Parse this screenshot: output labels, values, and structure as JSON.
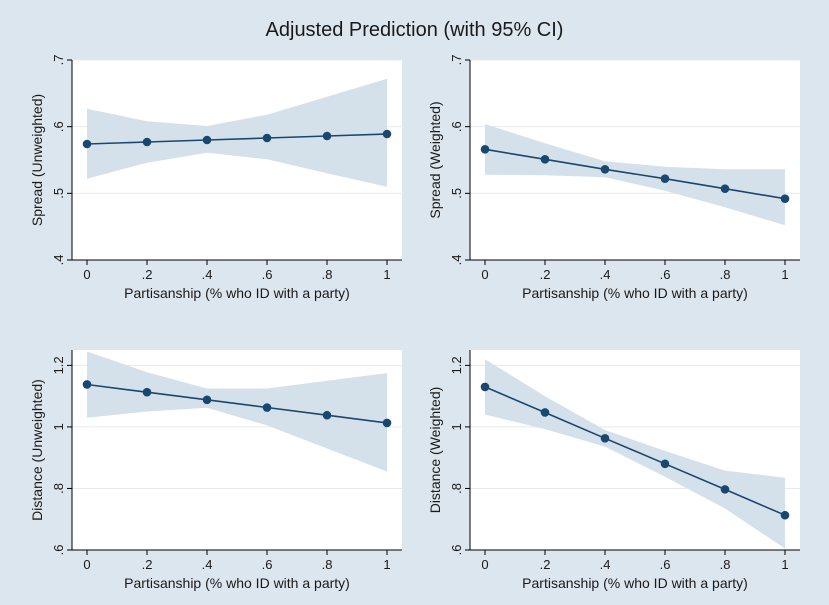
{
  "title": "Adjusted Prediction (with 95% CI)",
  "colors": {
    "background": "#dce6ee",
    "plot_bg": "#ffffff",
    "grid": "#e6eaee",
    "ci_band": "#d5e1ea",
    "line": "#1a476f",
    "marker": "#1a476f",
    "text": "#1a1a1a"
  },
  "chart_data": [
    {
      "type": "line",
      "xlabel": "Partisanship (% who ID with a party)",
      "ylabel": "Spread (Unweighted)",
      "x": [
        0,
        0.2,
        0.4,
        0.6,
        0.8,
        1
      ],
      "xtick_values": [
        0,
        0.2,
        0.4,
        0.6,
        0.8,
        1
      ],
      "xtick_labels": [
        "0",
        ".2",
        ".4",
        ".6",
        ".8",
        "1"
      ],
      "ylim": [
        0.4,
        0.7
      ],
      "ytick_values": [
        0.4,
        0.5,
        0.6,
        0.7
      ],
      "ytick_labels": [
        ".4",
        ".5",
        ".6",
        ".7"
      ],
      "series": [
        {
          "name": "prediction",
          "values": [
            0.574,
            0.577,
            0.58,
            0.583,
            0.586,
            0.589
          ],
          "ci_lower": [
            0.522,
            0.546,
            0.561,
            0.551,
            0.53,
            0.51
          ],
          "ci_upper": [
            0.627,
            0.608,
            0.601,
            0.618,
            0.645,
            0.672
          ]
        }
      ]
    },
    {
      "type": "line",
      "xlabel": "Partisanship (% who ID with a party)",
      "ylabel": "Spread (Weighted)",
      "x": [
        0,
        0.2,
        0.4,
        0.6,
        0.8,
        1
      ],
      "xtick_values": [
        0,
        0.2,
        0.4,
        0.6,
        0.8,
        1
      ],
      "xtick_labels": [
        "0",
        ".2",
        ".4",
        ".6",
        ".8",
        "1"
      ],
      "ylim": [
        0.4,
        0.7
      ],
      "ytick_values": [
        0.4,
        0.5,
        0.6,
        0.7
      ],
      "ytick_labels": [
        ".4",
        ".5",
        ".6",
        ".7"
      ],
      "series": [
        {
          "name": "prediction",
          "values": [
            0.566,
            0.551,
            0.536,
            0.522,
            0.507,
            0.492
          ],
          "ci_lower": [
            0.528,
            0.527,
            0.524,
            0.504,
            0.479,
            0.452
          ],
          "ci_upper": [
            0.604,
            0.575,
            0.548,
            0.54,
            0.536,
            0.536
          ]
        }
      ]
    },
    {
      "type": "line",
      "xlabel": "Partisanship (% who ID with a party)",
      "ylabel": "Distance (Unweighted)",
      "x": [
        0,
        0.2,
        0.4,
        0.6,
        0.8,
        1
      ],
      "xtick_values": [
        0,
        0.2,
        0.4,
        0.6,
        0.8,
        1
      ],
      "xtick_labels": [
        "0",
        ".2",
        ".4",
        ".6",
        ".8",
        "1"
      ],
      "ylim": [
        0.6,
        1.25
      ],
      "ytick_values": [
        0.6,
        0.8,
        1.0,
        1.2
      ],
      "ytick_labels": [
        ".6",
        ".8",
        "1",
        "1.2"
      ],
      "series": [
        {
          "name": "prediction",
          "values": [
            1.138,
            1.113,
            1.088,
            1.063,
            1.038,
            1.013
          ],
          "ci_lower": [
            1.03,
            1.05,
            1.062,
            1.005,
            0.93,
            0.855
          ],
          "ci_upper": [
            1.245,
            1.178,
            1.125,
            1.125,
            1.15,
            1.175
          ]
        }
      ]
    },
    {
      "type": "line",
      "xlabel": "Partisanship (% who ID with a party)",
      "ylabel": "Distance (Weighted)",
      "x": [
        0,
        0.2,
        0.4,
        0.6,
        0.8,
        1
      ],
      "xtick_values": [
        0,
        0.2,
        0.4,
        0.6,
        0.8,
        1
      ],
      "xtick_labels": [
        "0",
        ".2",
        ".4",
        ".6",
        ".8",
        "1"
      ],
      "ylim": [
        0.6,
        1.25
      ],
      "ytick_values": [
        0.6,
        0.8,
        1.0,
        1.2
      ],
      "ytick_labels": [
        ".6",
        ".8",
        "1",
        "1.2"
      ],
      "series": [
        {
          "name": "prediction",
          "values": [
            1.13,
            1.047,
            0.963,
            0.88,
            0.797,
            0.713
          ],
          "ci_lower": [
            1.04,
            0.993,
            0.936,
            0.838,
            0.735,
            0.605
          ],
          "ci_upper": [
            1.22,
            1.1,
            0.99,
            0.922,
            0.858,
            0.835
          ]
        }
      ]
    }
  ]
}
